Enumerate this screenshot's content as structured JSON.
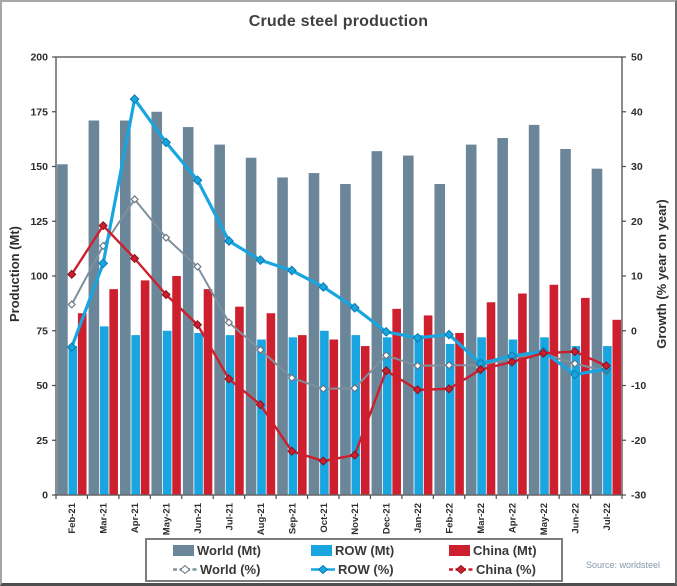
{
  "chart": {
    "title": "Crude steel production",
    "source": "Source: worldsteel"
  },
  "chart_data": {
    "type": "combo-bar-line",
    "title": "Crude steel production",
    "source": "Source: worldsteel",
    "categories": [
      "Feb-21",
      "Mar-21",
      "Apr-21",
      "May-21",
      "Jun-21",
      "Jul-21",
      "Aug-21",
      "Sep-21",
      "Oct-21",
      "Nov-21",
      "Dec-21",
      "Jan-22",
      "Feb-22",
      "Mar-22",
      "Apr-22",
      "May-22",
      "Jun-22",
      "Jul-22"
    ],
    "left_axis": {
      "label": "Production (Mt)",
      "min": 0,
      "max": 200,
      "ticks": [
        0,
        25,
        50,
        75,
        100,
        125,
        150,
        175,
        200
      ]
    },
    "right_axis": {
      "label": "Growth (% year on year)",
      "min": -30,
      "max": 50,
      "ticks": [
        50,
        40,
        30,
        20,
        10,
        0,
        -10,
        -20,
        -30
      ]
    },
    "grid": false,
    "legend_position": "bottom",
    "bar_series": [
      {
        "name": "World (Mt)",
        "color": "#6b8599",
        "axis": "left",
        "values": [
          151,
          171,
          171,
          175,
          168,
          160,
          154,
          145,
          147,
          142,
          157,
          155,
          142,
          160,
          163,
          169,
          158,
          149
        ]
      },
      {
        "name": "ROW (Mt)",
        "color": "#18a5e0",
        "axis": "left",
        "values": [
          68,
          77,
          73,
          75,
          74,
          73,
          71,
          72,
          75,
          73,
          72,
          73,
          69,
          72,
          71,
          72,
          68,
          68
        ]
      },
      {
        "name": "China (Mt)",
        "color": "#ce1f2e",
        "axis": "left",
        "values": [
          83,
          94,
          98,
          100,
          94,
          86,
          83,
          73,
          71,
          68,
          85,
          82,
          74,
          88,
          92,
          96,
          90,
          80
        ]
      }
    ],
    "line_series": [
      {
        "name": "World (%)",
        "color": "#7e909e",
        "marker_fill": "#ffffff",
        "marker_stroke": "#64727e",
        "stroke_width": 2,
        "dashed_glyph": true,
        "axis": "right",
        "values": [
          4.8,
          15.5,
          24.0,
          17.0,
          11.7,
          1.5,
          -3.5,
          -8.6,
          -10.6,
          -10.5,
          -4.5,
          -6.4,
          -6.3,
          -6.3,
          -4.9,
          -4.2,
          -6.0,
          -7.4
        ]
      },
      {
        "name": "ROW (%)",
        "color": "#18a5e0",
        "marker_fill": "#18a5e0",
        "marker_stroke": "#0d7fb5",
        "stroke_width": 3.2,
        "dashed_glyph": false,
        "axis": "right",
        "values": [
          -3.0,
          12.3,
          42.3,
          34.4,
          27.5,
          16.4,
          12.9,
          11.0,
          8.0,
          4.2,
          -0.2,
          -1.3,
          -0.7,
          -6.0,
          -4.6,
          -3.8,
          -8.0,
          -7.0
        ]
      },
      {
        "name": "China (%)",
        "color": "#ce1f2e",
        "marker_fill": "#ce1f2e",
        "marker_stroke": "#8e1420",
        "stroke_width": 2.4,
        "dashed_glyph": true,
        "axis": "right",
        "values": [
          10.3,
          19.2,
          13.2,
          6.6,
          1.1,
          -8.8,
          -13.5,
          -22.0,
          -23.8,
          -22.7,
          -7.3,
          -10.8,
          -10.6,
          -7.1,
          -5.7,
          -4.1,
          -3.8,
          -6.4
        ]
      }
    ]
  }
}
